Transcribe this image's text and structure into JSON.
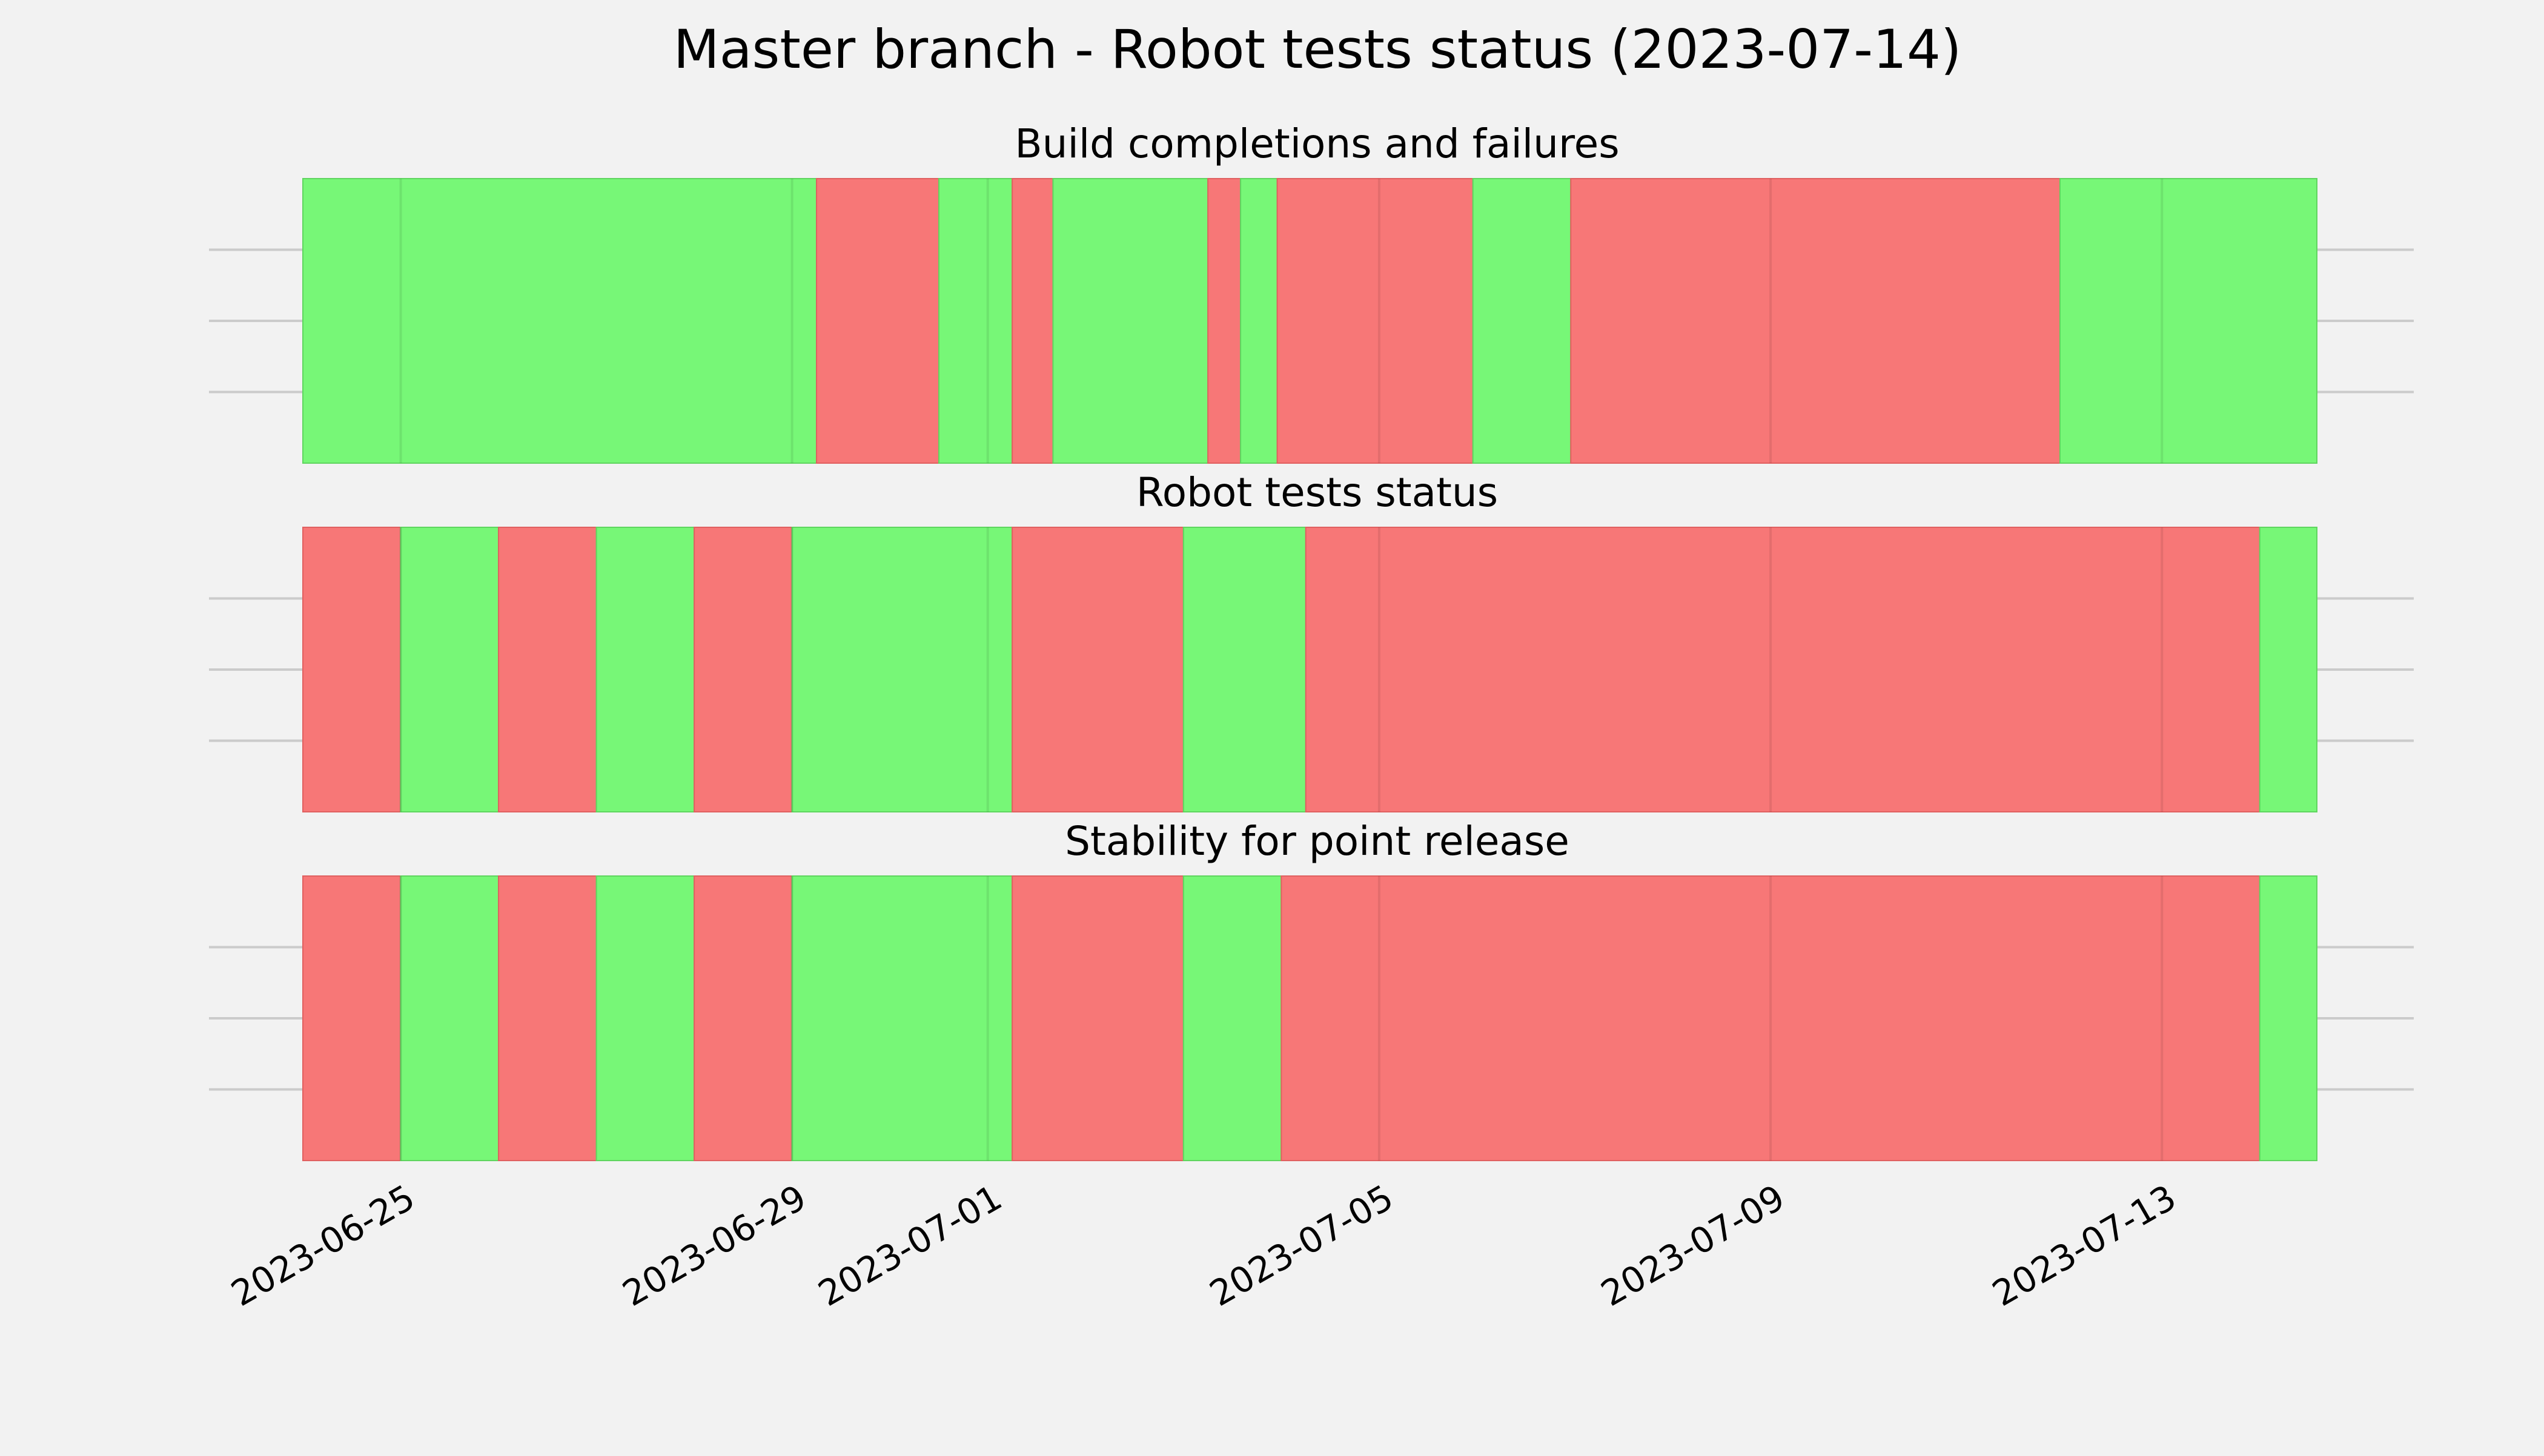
{
  "chart_data": {
    "type": "timeline",
    "title": "Master branch - Robot tests status (2023-07-14)",
    "xlim": [
      "2023-06-24",
      "2023-07-14T14:00"
    ],
    "x_ticks": [
      "2023-06-25",
      "2023-06-29",
      "2023-07-01",
      "2023-07-05",
      "2023-07-09",
      "2023-07-13"
    ],
    "status_colors": {
      "success": "#77f777",
      "failure": "#f77777"
    },
    "grid": true,
    "panels": [
      {
        "title": "Build completions and failures",
        "segments": [
          {
            "start": "2023-06-24T00:00",
            "end": "2023-06-29T06:00",
            "status": "success"
          },
          {
            "start": "2023-06-29T06:00",
            "end": "2023-06-30T12:00",
            "status": "failure"
          },
          {
            "start": "2023-06-30T12:00",
            "end": "2023-07-01T06:00",
            "status": "success"
          },
          {
            "start": "2023-07-01T06:00",
            "end": "2023-07-01T16:00",
            "status": "failure"
          },
          {
            "start": "2023-07-01T16:00",
            "end": "2023-07-03T06:00",
            "status": "success"
          },
          {
            "start": "2023-07-03T06:00",
            "end": "2023-07-03T14:00",
            "status": "failure"
          },
          {
            "start": "2023-07-03T14:00",
            "end": "2023-07-03T23:00",
            "status": "success"
          },
          {
            "start": "2023-07-03T23:00",
            "end": "2023-07-05T23:00",
            "status": "failure"
          },
          {
            "start": "2023-07-05T23:00",
            "end": "2023-07-06T23:00",
            "status": "success"
          },
          {
            "start": "2023-07-06T23:00",
            "end": "2023-07-11T23:00",
            "status": "failure"
          },
          {
            "start": "2023-07-11T23:00",
            "end": "2023-07-14T14:00",
            "status": "success"
          }
        ]
      },
      {
        "title": "Robot tests status",
        "segments": [
          {
            "start": "2023-06-24T00:00",
            "end": "2023-06-25T00:00",
            "status": "failure"
          },
          {
            "start": "2023-06-25T00:00",
            "end": "2023-06-26T00:00",
            "status": "success"
          },
          {
            "start": "2023-06-26T00:00",
            "end": "2023-06-27T00:00",
            "status": "failure"
          },
          {
            "start": "2023-06-27T00:00",
            "end": "2023-06-28T00:00",
            "status": "success"
          },
          {
            "start": "2023-06-28T00:00",
            "end": "2023-06-29T00:00",
            "status": "failure"
          },
          {
            "start": "2023-06-29T00:00",
            "end": "2023-07-01T06:00",
            "status": "success"
          },
          {
            "start": "2023-07-01T06:00",
            "end": "2023-07-03T00:00",
            "status": "failure"
          },
          {
            "start": "2023-07-03T00:00",
            "end": "2023-07-04T06:00",
            "status": "success"
          },
          {
            "start": "2023-07-04T06:00",
            "end": "2023-07-14T00:00",
            "status": "failure"
          },
          {
            "start": "2023-07-14T00:00",
            "end": "2023-07-14T14:00",
            "status": "success"
          }
        ]
      },
      {
        "title": "Stability for point release",
        "segments": [
          {
            "start": "2023-06-24T00:00",
            "end": "2023-06-25T00:00",
            "status": "failure"
          },
          {
            "start": "2023-06-25T00:00",
            "end": "2023-06-26T00:00",
            "status": "success"
          },
          {
            "start": "2023-06-26T00:00",
            "end": "2023-06-27T00:00",
            "status": "failure"
          },
          {
            "start": "2023-06-27T00:00",
            "end": "2023-06-28T00:00",
            "status": "success"
          },
          {
            "start": "2023-06-28T00:00",
            "end": "2023-06-29T00:00",
            "status": "failure"
          },
          {
            "start": "2023-06-29T00:00",
            "end": "2023-07-01T06:00",
            "status": "success"
          },
          {
            "start": "2023-07-01T06:00",
            "end": "2023-07-03T00:00",
            "status": "failure"
          },
          {
            "start": "2023-07-03T00:00",
            "end": "2023-07-04T00:00",
            "status": "success"
          },
          {
            "start": "2023-07-04T00:00",
            "end": "2023-07-14T00:00",
            "status": "failure"
          },
          {
            "start": "2023-07-14T00:00",
            "end": "2023-07-14T14:00",
            "status": "success"
          }
        ]
      }
    ]
  }
}
